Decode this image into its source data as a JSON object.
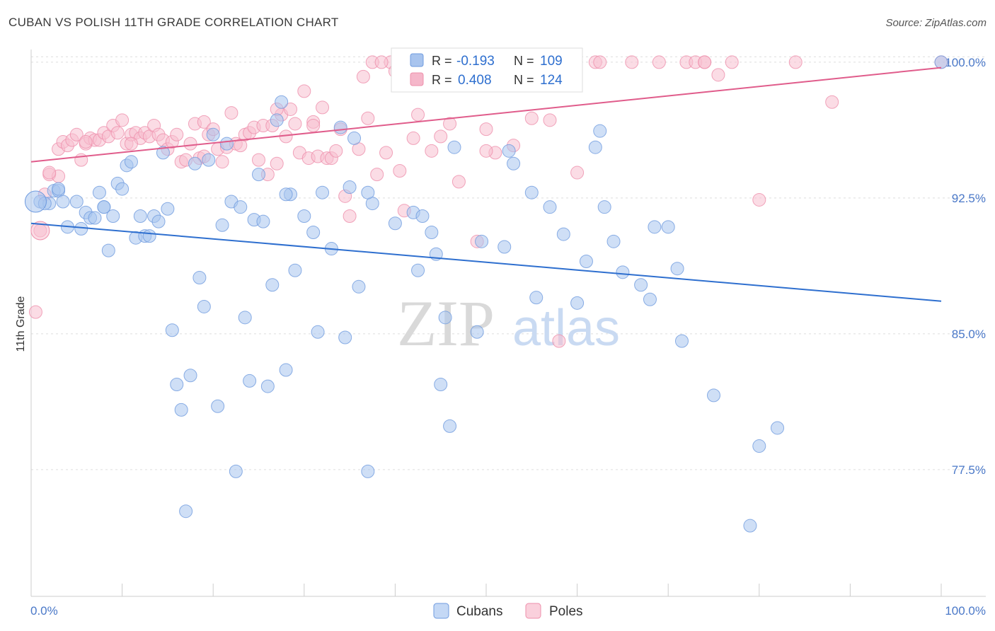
{
  "title": "CUBAN VS POLISH 11TH GRADE CORRELATION CHART",
  "source": "Source: ZipAtlas.com",
  "watermark": {
    "zip": "ZIP",
    "atlas": "atlas"
  },
  "legend_box": {
    "rows": [
      {
        "r_label": "R =",
        "r_value": "-0.193",
        "n_label": "N =",
        "n_value": "109",
        "color": "#a8c4ee"
      },
      {
        "r_label": "R =",
        "r_value": "0.408",
        "n_label": "N =",
        "n_value": "124",
        "color": "#f5b7ca"
      }
    ]
  },
  "chart_data": {
    "type": "scatter",
    "title": "CUBAN VS POLISH 11TH GRADE CORRELATION CHART",
    "xlabel": "",
    "ylabel": "11th Grade",
    "x_tick_labels": [
      "0.0%",
      "100.0%"
    ],
    "y_tick_labels": [
      "100.0%",
      "92.5%",
      "85.0%",
      "77.5%"
    ],
    "y_ticks": [
      100.0,
      92.5,
      85.0,
      77.5
    ],
    "xlim": [
      0,
      100
    ],
    "ylim": [
      70.5,
      100.7
    ],
    "grid": true,
    "legend_position": "bottom-center",
    "colors": {
      "cubans_fill": "#a8c4ee",
      "cubans_stroke": "#6f9bdf",
      "cubans_line": "#2e6fcf",
      "poles_fill": "#f7bfd0",
      "poles_stroke": "#ee8fab",
      "poles_line": "#e05c8b",
      "tick_label": "#4a78c8",
      "grid": "#dddddd"
    },
    "series": [
      {
        "name": "Cubans",
        "stats": {
          "R": -0.193,
          "N": 109
        },
        "trend": {
          "x": [
            0,
            100
          ],
          "y": [
            91.1,
            86.8
          ]
        },
        "points": [
          [
            1,
            92.3
          ],
          [
            2,
            92.2
          ],
          [
            2.5,
            92.9
          ],
          [
            3,
            92.9
          ],
          [
            3.5,
            92.3
          ],
          [
            4,
            90.9
          ],
          [
            5,
            92.3
          ],
          [
            5.5,
            90.8
          ],
          [
            6,
            91.7
          ],
          [
            6.5,
            91.4
          ],
          [
            7,
            91.4
          ],
          [
            7.5,
            92.8
          ],
          [
            8,
            92.0
          ],
          [
            8.5,
            89.6
          ],
          [
            9,
            91.5
          ],
          [
            9.5,
            93.3
          ],
          [
            10,
            93.0
          ],
          [
            10.5,
            94.3
          ],
          [
            11,
            94.5
          ],
          [
            11.5,
            90.3
          ],
          [
            12,
            91.5
          ],
          [
            12.5,
            90.4
          ],
          [
            13,
            90.4
          ],
          [
            13.5,
            91.5
          ],
          [
            14,
            91.2
          ],
          [
            14.5,
            95.0
          ],
          [
            15,
            91.9
          ],
          [
            15.5,
            85.2
          ],
          [
            16,
            82.2
          ],
          [
            16.5,
            80.8
          ],
          [
            17,
            75.2
          ],
          [
            17.5,
            82.7
          ],
          [
            18,
            94.4
          ],
          [
            18.5,
            88.1
          ],
          [
            19,
            86.5
          ],
          [
            19.5,
            94.6
          ],
          [
            20,
            96.0
          ],
          [
            20.5,
            81.0
          ],
          [
            21,
            91.0
          ],
          [
            21.5,
            95.5
          ],
          [
            22,
            92.3
          ],
          [
            22.5,
            77.4
          ],
          [
            23,
            92.0
          ],
          [
            23.5,
            85.9
          ],
          [
            24,
            82.4
          ],
          [
            24.5,
            91.3
          ],
          [
            25,
            93.8
          ],
          [
            25.5,
            91.2
          ],
          [
            26,
            82.1
          ],
          [
            26.5,
            87.7
          ],
          [
            27,
            96.8
          ],
          [
            27.5,
            97.8
          ],
          [
            28,
            83.0
          ],
          [
            28.5,
            92.7
          ],
          [
            29,
            88.5
          ],
          [
            30,
            91.5
          ],
          [
            31,
            90.6
          ],
          [
            31.5,
            85.1
          ],
          [
            32,
            92.8
          ],
          [
            33,
            89.7
          ],
          [
            34,
            96.4
          ],
          [
            34.5,
            84.8
          ],
          [
            35,
            93.1
          ],
          [
            35.5,
            95.8
          ],
          [
            36,
            87.6
          ],
          [
            37,
            77.4
          ],
          [
            37.5,
            92.2
          ],
          [
            40,
            91.1
          ],
          [
            42,
            91.7
          ],
          [
            42.5,
            88.5
          ],
          [
            43,
            91.5
          ],
          [
            44,
            90.6
          ],
          [
            44.5,
            89.4
          ],
          [
            45,
            82.2
          ],
          [
            45.5,
            85.9
          ],
          [
            46,
            79.9
          ],
          [
            46.5,
            95.3
          ],
          [
            49,
            85.1
          ],
          [
            49.5,
            90.1
          ],
          [
            52,
            89.8
          ],
          [
            52.5,
            95.1
          ],
          [
            53,
            94.4
          ],
          [
            55,
            92.8
          ],
          [
            55.5,
            87.0
          ],
          [
            57,
            92.0
          ],
          [
            58.5,
            90.5
          ],
          [
            60,
            86.7
          ],
          [
            61,
            89.0
          ],
          [
            62,
            95.3
          ],
          [
            62.5,
            96.2
          ],
          [
            63,
            92.0
          ],
          [
            64,
            90.1
          ],
          [
            65,
            88.4
          ],
          [
            67,
            87.7
          ],
          [
            68,
            86.9
          ],
          [
            68.5,
            90.9
          ],
          [
            70,
            90.9
          ],
          [
            71,
            88.6
          ],
          [
            71.5,
            84.6
          ],
          [
            75,
            81.6
          ],
          [
            79,
            74.4
          ],
          [
            80,
            78.8
          ],
          [
            82,
            79.8
          ],
          [
            100,
            100.0
          ],
          [
            1.5,
            92.2
          ],
          [
            3,
            93.0
          ],
          [
            8,
            92.0
          ],
          [
            28,
            92.7
          ],
          [
            37,
            92.8
          ]
        ]
      },
      {
        "name": "Poles",
        "stats": {
          "R": 0.408,
          "N": 124
        },
        "trend": {
          "x": [
            0,
            100
          ],
          "y": [
            94.5,
            99.7
          ]
        },
        "points": [
          [
            0.5,
            86.2
          ],
          [
            1,
            90.7
          ],
          [
            1.5,
            92.7
          ],
          [
            2,
            93.8
          ],
          [
            3,
            93.7
          ],
          [
            3,
            95.2
          ],
          [
            3.5,
            95.6
          ],
          [
            4,
            95.4
          ],
          [
            4.5,
            95.7
          ],
          [
            5,
            96.0
          ],
          [
            5.5,
            94.6
          ],
          [
            6,
            95.5
          ],
          [
            6.5,
            95.8
          ],
          [
            7,
            95.7
          ],
          [
            7.5,
            95.7
          ],
          [
            8,
            96.1
          ],
          [
            8.5,
            95.9
          ],
          [
            9,
            96.5
          ],
          [
            9.5,
            96.1
          ],
          [
            10,
            96.8
          ],
          [
            10.5,
            95.5
          ],
          [
            11,
            96.0
          ],
          [
            11.5,
            96.1
          ],
          [
            12,
            95.8
          ],
          [
            12.5,
            96.1
          ],
          [
            13,
            95.9
          ],
          [
            13.5,
            96.5
          ],
          [
            14,
            96.0
          ],
          [
            14.5,
            95.7
          ],
          [
            15,
            95.2
          ],
          [
            15.5,
            95.6
          ],
          [
            16,
            96.0
          ],
          [
            16.5,
            94.5
          ],
          [
            17,
            94.6
          ],
          [
            17.5,
            95.5
          ],
          [
            18,
            96.6
          ],
          [
            18.5,
            94.7
          ],
          [
            19,
            96.7
          ],
          [
            19.5,
            96.0
          ],
          [
            20,
            96.3
          ],
          [
            20.5,
            95.2
          ],
          [
            21,
            94.5
          ],
          [
            21.5,
            95.3
          ],
          [
            22,
            97.2
          ],
          [
            22.5,
            95.5
          ],
          [
            23,
            95.4
          ],
          [
            23.5,
            96.0
          ],
          [
            24,
            96.1
          ],
          [
            24.5,
            96.4
          ],
          [
            25,
            94.6
          ],
          [
            25.5,
            96.5
          ],
          [
            26,
            93.8
          ],
          [
            26.5,
            96.5
          ],
          [
            27,
            94.4
          ],
          [
            27.5,
            97.1
          ],
          [
            28,
            95.9
          ],
          [
            28.5,
            97.4
          ],
          [
            29,
            96.6
          ],
          [
            29.5,
            95.0
          ],
          [
            30,
            98.4
          ],
          [
            30.5,
            94.7
          ],
          [
            31,
            96.7
          ],
          [
            31.5,
            94.8
          ],
          [
            32,
            97.5
          ],
          [
            32.5,
            94.7
          ],
          [
            33,
            94.7
          ],
          [
            33.5,
            95.1
          ],
          [
            34,
            96.3
          ],
          [
            34.5,
            92.6
          ],
          [
            35,
            91.5
          ],
          [
            36,
            95.2
          ],
          [
            36.5,
            99.2
          ],
          [
            37,
            96.9
          ],
          [
            37.5,
            100.0
          ],
          [
            38,
            93.8
          ],
          [
            39,
            95.0
          ],
          [
            39.5,
            100.0
          ],
          [
            40,
            99.5
          ],
          [
            40.5,
            94.0
          ],
          [
            41,
            91.8
          ],
          [
            42,
            95.8
          ],
          [
            42.5,
            97.1
          ],
          [
            43,
            100.0
          ],
          [
            44,
            95.1
          ],
          [
            45,
            95.9
          ],
          [
            45.5,
            100.0
          ],
          [
            47,
            93.4
          ],
          [
            48,
            100.0
          ],
          [
            49,
            90.1
          ],
          [
            50,
            96.3
          ],
          [
            51,
            95.0
          ],
          [
            51.5,
            100.0
          ],
          [
            53,
            95.4
          ],
          [
            55,
            96.9
          ],
          [
            57,
            96.8
          ],
          [
            58,
            84.6
          ],
          [
            60,
            93.9
          ],
          [
            62,
            100.0
          ],
          [
            62.5,
            100.0
          ],
          [
            66,
            100.0
          ],
          [
            69,
            100.0
          ],
          [
            72,
            100.0
          ],
          [
            73,
            100.0
          ],
          [
            74,
            100.0
          ],
          [
            75.5,
            99.3
          ],
          [
            77,
            100.0
          ],
          [
            80,
            92.4
          ],
          [
            84,
            100.0
          ],
          [
            88,
            97.8
          ],
          [
            100,
            100.0
          ],
          [
            38.5,
            100.0
          ],
          [
            41,
            100.0
          ],
          [
            46,
            100.0
          ],
          [
            52,
            100.0
          ],
          [
            54,
            100.0
          ],
          [
            74,
            100.0
          ],
          [
            2,
            93.9
          ],
          [
            6,
            95.6
          ],
          [
            11,
            95.5
          ],
          [
            19,
            94.8
          ],
          [
            27,
            97.4
          ],
          [
            31,
            96.5
          ],
          [
            46,
            96.6
          ],
          [
            50,
            95.1
          ]
        ]
      }
    ]
  }
}
